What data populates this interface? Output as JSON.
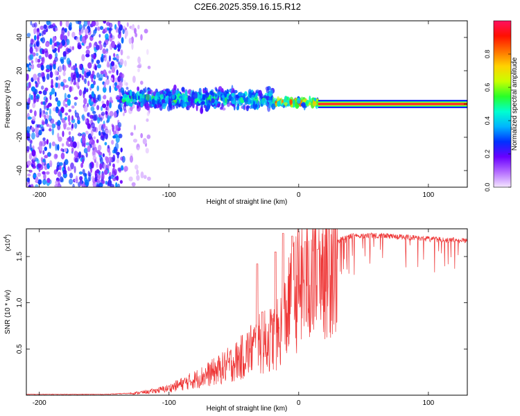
{
  "chart_data": [
    {
      "type": "heatmap",
      "title": "C2E6.2025.359.16.15.R12",
      "xlabel": "Height of straight line (km)",
      "ylabel": "Frequency (Hz)",
      "xlim": [
        -210,
        130
      ],
      "ylim": [
        -50,
        50
      ],
      "xticks": [
        -200,
        -100,
        0,
        100
      ],
      "yticks": [
        -40,
        -20,
        0,
        20,
        40
      ],
      "colorbar": {
        "label": "Normalized spectral amplitude",
        "range": [
          0,
          1
        ],
        "ticks": [
          "0.0",
          "0.2",
          "0.4",
          "0.6",
          "0.8"
        ],
        "colors": [
          "#f4e6ff",
          "#b46cff",
          "#6a00ff",
          "#0030ff",
          "#00b4ff",
          "#00ffd0",
          "#28ff28",
          "#c8ff00",
          "#ffd200",
          "#ff7000",
          "#ff1000",
          "#ff1060"
        ]
      },
      "regions": [
        {
          "name": "noise",
          "x": [
            -210,
            -135
          ],
          "freq_spread": 50,
          "level": 0.28
        },
        {
          "name": "sparse-noise",
          "x": [
            -135,
            -115
          ],
          "freq_spread": 50,
          "level": 0.08
        },
        {
          "name": "signal-broad",
          "x": [
            -135,
            -20
          ],
          "freq_center": 3,
          "freq_spread": 8,
          "level": 0.45
        },
        {
          "name": "signal-narrowing",
          "x": [
            -20,
            15
          ],
          "freq_center": 1,
          "freq_spread": 3,
          "level": 0.75
        },
        {
          "name": "tone",
          "x": [
            15,
            130
          ],
          "freq_center": 0,
          "freq_spread": 1.5,
          "level": 0.98
        }
      ]
    },
    {
      "type": "line",
      "xlabel": "Height of straight line (km)",
      "ylabel": "SNR (10 * v/v)",
      "multiplier": "(x10",
      "multiplier_exp": "4",
      "multiplier_close": ")",
      "xlim": [
        -210,
        130
      ],
      "ylim": [
        0,
        1.8
      ],
      "xticks": [
        -200,
        -100,
        0,
        100
      ],
      "yticks": [
        0.5,
        1.0,
        1.5
      ],
      "ytick_labels": [
        "0.5",
        "1.0",
        "1.5"
      ],
      "color": "#ee3333",
      "series": [
        {
          "name": "SNR",
          "x": [
            -210,
            -180,
            -150,
            -130,
            -115,
            -100,
            -80,
            -60,
            -45,
            -35,
            -25,
            -15,
            -10,
            -5,
            0,
            10,
            20,
            30,
            40,
            60,
            80,
            100,
            130
          ],
          "values": [
            0.01,
            0.01,
            0.01,
            0.02,
            0.04,
            0.08,
            0.18,
            0.3,
            0.42,
            0.55,
            0.62,
            0.7,
            0.9,
            1.1,
            1.25,
            1.4,
            1.55,
            1.7,
            1.75,
            1.76,
            1.74,
            1.72,
            1.7
          ],
          "noise_spikes": [
            [
              -32,
              1.42
            ],
            [
              -28,
              0.9
            ],
            [
              -18,
              1.55
            ],
            [
              -12,
              1.75
            ],
            [
              -5,
              1.72
            ],
            [
              5,
              1.66
            ],
            [
              15,
              1.58
            ]
          ]
        }
      ]
    }
  ]
}
